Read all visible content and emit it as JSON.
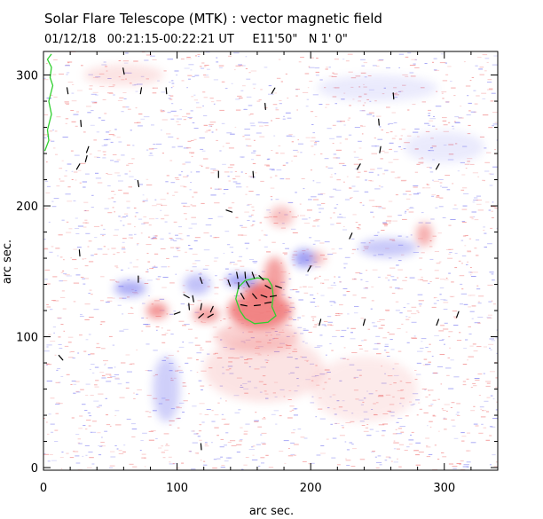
{
  "chart_data": {
    "type": "scatter",
    "title": "Solar Flare Telescope (MTK) : vector magnetic field",
    "subtitle": "01/12/18   00:21:15-00:22:21 UT     E11'50\"   N 1' 0\"",
    "xlabel": "arc sec.",
    "ylabel": "arc sec.",
    "xlim": [
      0,
      340
    ],
    "ylim": [
      -2,
      318
    ],
    "xticks": [
      0,
      100,
      200,
      300
    ],
    "yticks": [
      0,
      100,
      200,
      300
    ],
    "grid": false,
    "colors": {
      "positive_polarity": "#f07878",
      "negative_polarity": "#7878f0",
      "field_vectors": "#000000",
      "contour": "#30d030",
      "axes": "#000000",
      "background": "#ffffff"
    },
    "series": [
      {
        "name": "positive polarity regions",
        "kind": "blob",
        "values": [
          {
            "x": 162,
            "y": 120,
            "rx": 24,
            "ry": 14,
            "strength": 0.9
          },
          {
            "x": 163,
            "y": 134,
            "rx": 12,
            "ry": 8,
            "strength": 1.0
          },
          {
            "x": 173,
            "y": 145,
            "rx": 8,
            "ry": 16,
            "strength": 0.7
          },
          {
            "x": 85,
            "y": 120,
            "rx": 8,
            "ry": 6,
            "strength": 0.8
          },
          {
            "x": 122,
            "y": 117,
            "rx": 10,
            "ry": 6,
            "strength": 0.7
          },
          {
            "x": 285,
            "y": 178,
            "rx": 6,
            "ry": 9,
            "strength": 0.6
          },
          {
            "x": 160,
            "y": 100,
            "rx": 32,
            "ry": 12,
            "strength": 0.35
          },
          {
            "x": 178,
            "y": 192,
            "rx": 9,
            "ry": 8,
            "strength": 0.45
          },
          {
            "x": 205,
            "y": 160,
            "rx": 6,
            "ry": 5,
            "strength": 0.5
          },
          {
            "x": 165,
            "y": 75,
            "rx": 45,
            "ry": 25,
            "strength": 0.2
          },
          {
            "x": 60,
            "y": 300,
            "rx": 30,
            "ry": 8,
            "strength": 0.2
          },
          {
            "x": 240,
            "y": 60,
            "rx": 40,
            "ry": 25,
            "strength": 0.15
          }
        ]
      },
      {
        "name": "negative polarity regions",
        "kind": "blob",
        "values": [
          {
            "x": 65,
            "y": 137,
            "rx": 12,
            "ry": 6,
            "strength": 0.6
          },
          {
            "x": 115,
            "y": 140,
            "rx": 10,
            "ry": 8,
            "strength": 0.45
          },
          {
            "x": 148,
            "y": 143,
            "rx": 12,
            "ry": 5,
            "strength": 0.7
          },
          {
            "x": 195,
            "y": 160,
            "rx": 8,
            "ry": 7,
            "strength": 0.7
          },
          {
            "x": 258,
            "y": 168,
            "rx": 22,
            "ry": 7,
            "strength": 0.4
          },
          {
            "x": 92,
            "y": 60,
            "rx": 10,
            "ry": 25,
            "strength": 0.35
          },
          {
            "x": 250,
            "y": 290,
            "rx": 45,
            "ry": 10,
            "strength": 0.15
          },
          {
            "x": 300,
            "y": 245,
            "rx": 30,
            "ry": 12,
            "strength": 0.15
          }
        ]
      },
      {
        "name": "transverse field vectors",
        "kind": "vector",
        "values": [
          {
            "x": 60,
            "y": 303,
            "angle": 100
          },
          {
            "x": 73,
            "y": 288,
            "angle": 80
          },
          {
            "x": 92,
            "y": 288,
            "angle": 95
          },
          {
            "x": 18,
            "y": 288,
            "angle": 100
          },
          {
            "x": 172,
            "y": 288,
            "angle": 60
          },
          {
            "x": 166,
            "y": 276,
            "angle": 95
          },
          {
            "x": 262,
            "y": 284,
            "angle": 95
          },
          {
            "x": 28,
            "y": 263,
            "angle": 95
          },
          {
            "x": 251,
            "y": 264,
            "angle": 95
          },
          {
            "x": 33,
            "y": 243,
            "angle": 70
          },
          {
            "x": 32,
            "y": 236,
            "angle": 75
          },
          {
            "x": 26,
            "y": 230,
            "angle": 60
          },
          {
            "x": 252,
            "y": 243,
            "angle": 80
          },
          {
            "x": 236,
            "y": 230,
            "angle": 60
          },
          {
            "x": 295,
            "y": 230,
            "angle": 60
          },
          {
            "x": 131,
            "y": 224,
            "angle": 90
          },
          {
            "x": 157,
            "y": 224,
            "angle": 95
          },
          {
            "x": 71,
            "y": 217,
            "angle": 100
          },
          {
            "x": 139,
            "y": 196,
            "angle": -20
          },
          {
            "x": 230,
            "y": 177,
            "angle": 65
          },
          {
            "x": 27,
            "y": 164,
            "angle": 95
          },
          {
            "x": 199,
            "y": 152,
            "angle": 60
          },
          {
            "x": 71,
            "y": 144,
            "angle": 90
          },
          {
            "x": 118,
            "y": 143,
            "angle": 110
          },
          {
            "x": 145,
            "y": 147,
            "angle": 100
          },
          {
            "x": 151,
            "y": 147,
            "angle": 95
          },
          {
            "x": 157,
            "y": 147,
            "angle": 110
          },
          {
            "x": 163,
            "y": 145,
            "angle": 135
          },
          {
            "x": 139,
            "y": 141,
            "angle": 110
          },
          {
            "x": 146,
            "y": 139,
            "angle": 90
          },
          {
            "x": 153,
            "y": 140,
            "angle": 120
          },
          {
            "x": 168,
            "y": 138,
            "angle": 150
          },
          {
            "x": 176,
            "y": 138,
            "angle": 160
          },
          {
            "x": 107,
            "y": 131,
            "angle": 150
          },
          {
            "x": 112,
            "y": 129,
            "angle": 100
          },
          {
            "x": 149,
            "y": 131,
            "angle": 120
          },
          {
            "x": 158,
            "y": 131,
            "angle": 130
          },
          {
            "x": 165,
            "y": 131,
            "angle": 160
          },
          {
            "x": 172,
            "y": 131,
            "angle": 10
          },
          {
            "x": 150,
            "y": 124,
            "angle": 170
          },
          {
            "x": 160,
            "y": 124,
            "angle": 5
          },
          {
            "x": 168,
            "y": 126,
            "angle": 10
          },
          {
            "x": 109,
            "y": 123,
            "angle": 95
          },
          {
            "x": 118,
            "y": 123,
            "angle": 80
          },
          {
            "x": 126,
            "y": 121,
            "angle": 65
          },
          {
            "x": 125,
            "y": 116,
            "angle": 30
          },
          {
            "x": 118,
            "y": 116,
            "angle": 40
          },
          {
            "x": 100,
            "y": 118,
            "angle": 20
          },
          {
            "x": 207,
            "y": 111,
            "angle": 75
          },
          {
            "x": 240,
            "y": 111,
            "angle": 75
          },
          {
            "x": 295,
            "y": 111,
            "angle": 70
          },
          {
            "x": 310,
            "y": 117,
            "angle": 70
          },
          {
            "x": 13,
            "y": 84,
            "angle": 130
          },
          {
            "x": 118,
            "y": 16,
            "angle": 95
          }
        ]
      },
      {
        "name": "flare kernel contour",
        "kind": "contour",
        "values": [
          {
            "x": 144,
            "y": 129
          },
          {
            "x": 146,
            "y": 138
          },
          {
            "x": 151,
            "y": 143
          },
          {
            "x": 160,
            "y": 145
          },
          {
            "x": 168,
            "y": 144
          },
          {
            "x": 171,
            "y": 139
          },
          {
            "x": 172,
            "y": 131
          },
          {
            "x": 171,
            "y": 123
          },
          {
            "x": 174,
            "y": 116
          },
          {
            "x": 168,
            "y": 111
          },
          {
            "x": 158,
            "y": 110
          },
          {
            "x": 151,
            "y": 114
          },
          {
            "x": 147,
            "y": 120
          }
        ]
      },
      {
        "name": "limb contour",
        "kind": "line",
        "values": [
          {
            "x": 6,
            "y": 316
          },
          {
            "x": 3,
            "y": 312
          },
          {
            "x": 6,
            "y": 306
          },
          {
            "x": 5,
            "y": 298
          },
          {
            "x": 7,
            "y": 292
          },
          {
            "x": 4,
            "y": 280
          },
          {
            "x": 6,
            "y": 270
          },
          {
            "x": 3,
            "y": 258
          },
          {
            "x": 4,
            "y": 250
          },
          {
            "x": 1,
            "y": 242
          }
        ]
      }
    ]
  }
}
